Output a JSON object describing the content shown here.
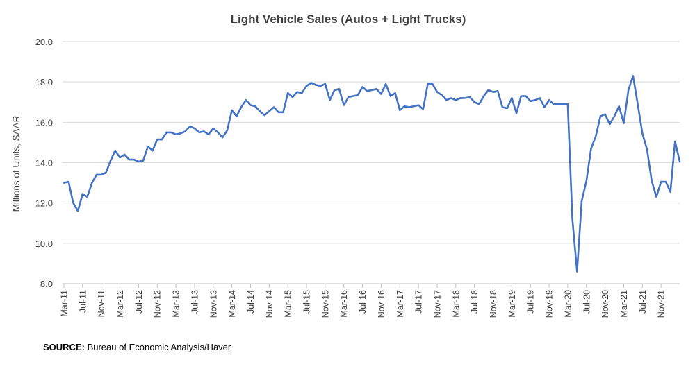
{
  "chart_data": {
    "type": "line",
    "title": "Light Vehicle Sales (Autos + Light Trucks)",
    "xlabel": "",
    "ylabel": "Millions of Units, SAAR",
    "ylim": [
      8.0,
      20.0
    ],
    "yticks": [
      "8.0",
      "10.0",
      "12.0",
      "14.0",
      "16.0",
      "18.0",
      "20.0"
    ],
    "grid": true,
    "legend": "none",
    "start": "Mar-11",
    "xtick_labels": [
      "Mar-11",
      "Jul-11",
      "Nov-11",
      "Mar-12",
      "Jul-12",
      "Nov-12",
      "Mar-13",
      "Jul-13",
      "Nov-13",
      "Mar-14",
      "Jul-14",
      "Nov-14",
      "Mar-15",
      "Jul-15",
      "Nov-15",
      "Mar-16",
      "Jul-16",
      "Nov-16",
      "Mar-17",
      "Jul-17",
      "Nov-17",
      "Mar-18",
      "Jul-18",
      "Nov-18",
      "Mar-19",
      "Jul-19",
      "Nov-19",
      "Mar-20",
      "Jul-20",
      "Nov-20",
      "Mar-21",
      "Jul-21",
      "Nov-21"
    ],
    "series": [
      {
        "name": "Light Vehicle Sales",
        "color": "#4472c4",
        "values": [
          13.0,
          13.05,
          12.0,
          11.6,
          12.45,
          12.3,
          13.0,
          13.4,
          13.4,
          13.5,
          14.1,
          14.6,
          14.25,
          14.4,
          14.15,
          14.15,
          14.05,
          14.1,
          14.8,
          14.6,
          15.15,
          15.15,
          15.5,
          15.5,
          15.4,
          15.45,
          15.55,
          15.8,
          15.7,
          15.5,
          15.55,
          15.4,
          15.7,
          15.5,
          15.25,
          15.6,
          16.6,
          16.3,
          16.75,
          17.1,
          16.85,
          16.8,
          16.55,
          16.35,
          16.55,
          16.75,
          16.5,
          16.5,
          17.45,
          17.25,
          17.5,
          17.45,
          17.8,
          17.95,
          17.85,
          17.8,
          17.9,
          17.1,
          17.6,
          17.65,
          16.85,
          17.25,
          17.3,
          17.35,
          17.75,
          17.55,
          17.6,
          17.65,
          17.4,
          17.9,
          17.3,
          17.45,
          16.6,
          16.8,
          16.75,
          16.8,
          16.85,
          16.65,
          17.9,
          17.9,
          17.5,
          17.35,
          17.1,
          17.2,
          17.1,
          17.2,
          17.2,
          17.25,
          17.0,
          16.9,
          17.3,
          17.6,
          17.5,
          17.55,
          16.75,
          16.7,
          17.2,
          16.45,
          17.3,
          17.3,
          17.05,
          17.1,
          17.2,
          16.75,
          17.1,
          16.9,
          16.9,
          16.9,
          16.9,
          11.2,
          8.6,
          12.1,
          13.1,
          14.7,
          15.3,
          16.3,
          16.4,
          15.9,
          16.3,
          16.8,
          15.95,
          17.6,
          18.3,
          16.9,
          15.45,
          14.65,
          13.1,
          12.3,
          13.05,
          13.05,
          12.55,
          15.05,
          14.05
        ]
      }
    ]
  },
  "source": {
    "label": "SOURCE:",
    "text": "Bureau of Economic Analysis/Haver"
  }
}
